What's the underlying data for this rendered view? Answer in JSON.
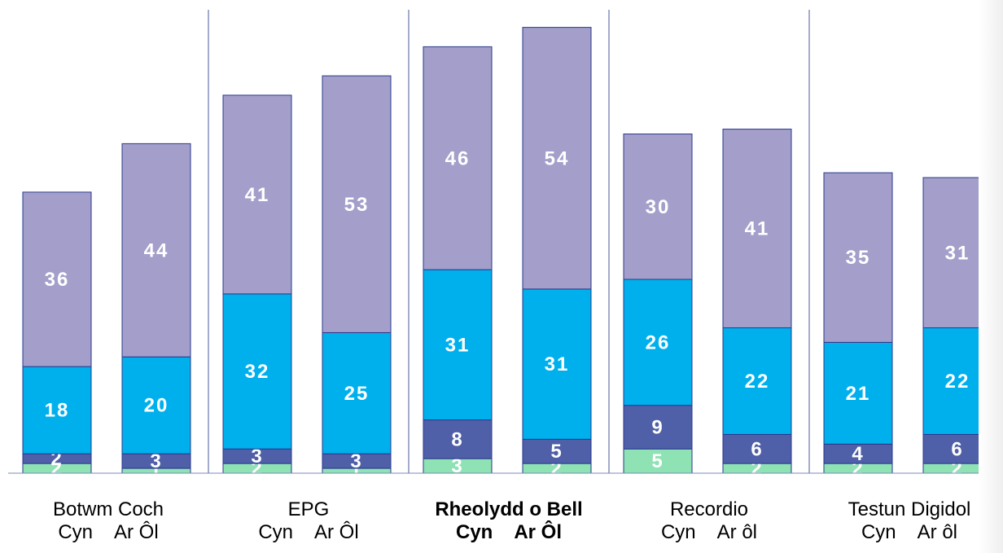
{
  "chart_data": {
    "type": "bar",
    "stacked": true,
    "groups": [
      {
        "name": "Botwm Coch",
        "sub": [
          "Cyn",
          "Ar Ôl"
        ],
        "bold": false
      },
      {
        "name": "EPG",
        "sub": [
          "Cyn",
          "Ar Ôl"
        ],
        "bold": false
      },
      {
        "name": "Rheolydd o Bell",
        "sub": [
          "Cyn",
          "Ar Ôl"
        ],
        "bold": true
      },
      {
        "name": "Recordio",
        "sub": [
          "Cyn",
          "Ar ôl"
        ],
        "bold": false
      },
      {
        "name": "Testun Digidol",
        "sub": [
          "Cyn",
          "Ar ôl"
        ],
        "bold": false
      }
    ],
    "categories": [
      "Botwm Coch Cyn",
      "Botwm Coch Ar Ôl",
      "EPG Cyn",
      "EPG Ar Ôl",
      "Rheolydd o Bell Cyn",
      "Rheolydd o Bell Ar Ôl",
      "Recordio Cyn",
      "Recordio Ar ôl",
      "Testun Digidol Cyn",
      "Testun Digidol Ar ôl"
    ],
    "series": [
      {
        "values": [
          2,
          1,
          2,
          1,
          3,
          2,
          5,
          2,
          2,
          2
        ],
        "color": "#8ee2b4"
      },
      {
        "values": [
          2,
          3,
          3,
          3,
          8,
          5,
          9,
          6,
          4,
          6
        ],
        "color": "#4f5fa8"
      },
      {
        "values": [
          18,
          20,
          32,
          25,
          31,
          31,
          26,
          22,
          21,
          22
        ],
        "color": "#00b0ec"
      },
      {
        "values": [
          36,
          44,
          41,
          53,
          46,
          54,
          30,
          41,
          35,
          31
        ],
        "color": "#a39fca"
      }
    ],
    "ylim": [
      0,
      96
    ],
    "grid": false,
    "label_color": "#ffffff",
    "separator_color": "#4a5a9a"
  }
}
